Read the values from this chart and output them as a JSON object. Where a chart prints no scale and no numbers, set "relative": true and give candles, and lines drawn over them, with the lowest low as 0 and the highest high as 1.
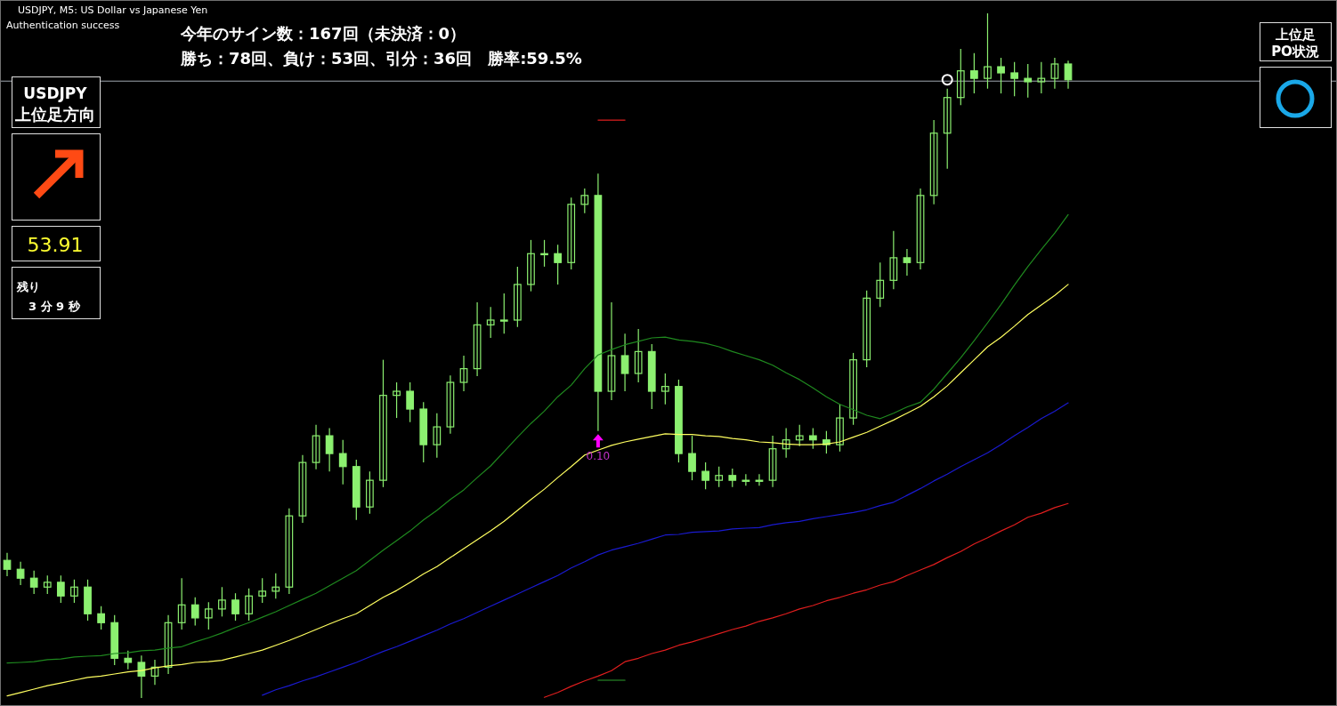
{
  "chart_data": [
    {
      "type": "candlestick",
      "title": "USDJPY, M5: US Dollar vs Japanese Yen",
      "subtitle": "Authentication success",
      "annotations": [
        "今年のサイン数：167回（未決済：0）",
        "勝ち：78回、負け：53回、引分：36回　勝率:59.5%",
        "0.10"
      ],
      "relative": true,
      "color": "#8cf070",
      "categories": [
        null,
        null,
        null,
        null,
        null,
        null,
        null,
        null,
        null,
        null,
        null,
        null,
        null,
        null,
        null,
        null,
        null,
        null,
        null,
        null,
        null,
        null,
        null,
        null,
        null,
        null,
        null,
        null,
        null,
        null,
        null,
        null,
        null,
        null,
        null,
        null,
        null,
        null,
        null,
        null,
        null,
        null,
        null,
        null,
        null,
        null,
        null,
        null,
        null,
        null,
        null,
        null,
        null,
        null,
        null,
        null,
        null,
        null,
        null,
        null,
        null,
        null,
        null,
        null,
        null,
        null,
        null,
        null,
        null,
        null,
        null,
        null,
        null,
        null,
        null,
        null,
        null,
        null,
        null,
        null
      ],
      "ohlc": [
        [
          0.201,
          0.212,
          0.178,
          0.188
        ],
        [
          0.188,
          0.199,
          0.165,
          0.175
        ],
        [
          0.175,
          0.186,
          0.152,
          0.162
        ],
        [
          0.162,
          0.179,
          0.152,
          0.169
        ],
        [
          0.169,
          0.179,
          0.139,
          0.149
        ],
        [
          0.149,
          0.173,
          0.139,
          0.162
        ],
        [
          0.162,
          0.173,
          0.113,
          0.123
        ],
        [
          0.123,
          0.134,
          0.1,
          0.11
        ],
        [
          0.11,
          0.121,
          0.048,
          0.058
        ],
        [
          0.058,
          0.069,
          0.042,
          0.052
        ],
        [
          0.052,
          0.062,
          0,
          0.032
        ],
        [
          0.032,
          0.056,
          0.019,
          0.045
        ],
        [
          0.045,
          0.121,
          0.035,
          0.11
        ],
        [
          0.11,
          0.175,
          0.1,
          0.136
        ],
        [
          0.136,
          0.147,
          0.106,
          0.117
        ],
        [
          0.117,
          0.14,
          0.1,
          0.13
        ],
        [
          0.13,
          0.162,
          0.119,
          0.143
        ],
        [
          0.143,
          0.153,
          0.113,
          0.123
        ],
        [
          0.123,
          0.16,
          0.113,
          0.149
        ],
        [
          0.149,
          0.175,
          0.139,
          0.156
        ],
        [
          0.156,
          0.182,
          0.145,
          0.162
        ],
        [
          0.162,
          0.277,
          0.152,
          0.266
        ],
        [
          0.266,
          0.355,
          0.256,
          0.344
        ],
        [
          0.344,
          0.399,
          0.334,
          0.383
        ],
        [
          0.383,
          0.394,
          0.331,
          0.357
        ],
        [
          0.357,
          0.377,
          0.312,
          0.338
        ],
        [
          0.338,
          0.348,
          0.26,
          0.279
        ],
        [
          0.279,
          0.331,
          0.269,
          0.318
        ],
        [
          0.318,
          0.494,
          0.308,
          0.442
        ],
        [
          0.442,
          0.461,
          0.409,
          0.448
        ],
        [
          0.448,
          0.461,
          0.403,
          0.422
        ],
        [
          0.422,
          0.432,
          0.344,
          0.37
        ],
        [
          0.37,
          0.416,
          0.351,
          0.396
        ],
        [
          0.396,
          0.471,
          0.386,
          0.461
        ],
        [
          0.461,
          0.5,
          0.448,
          0.481
        ],
        [
          0.481,
          0.578,
          0.47,
          0.545
        ],
        [
          0.545,
          0.571,
          0.526,
          0.552
        ],
        [
          0.552,
          0.591,
          0.532,
          0.552
        ],
        [
          0.552,
          0.63,
          0.542,
          0.604
        ],
        [
          0.604,
          0.669,
          0.594,
          0.649
        ],
        [
          0.649,
          0.669,
          0.63,
          0.649
        ],
        [
          0.649,
          0.662,
          0.604,
          0.636
        ],
        [
          0.636,
          0.731,
          0.626,
          0.721
        ],
        [
          0.721,
          0.744,
          0.708,
          0.734
        ],
        [
          0.734,
          0.766,
          0.39,
          0.448
        ],
        [
          0.448,
          0.578,
          0.435,
          0.5
        ],
        [
          0.5,
          0.532,
          0.448,
          0.474
        ],
        [
          0.474,
          0.539,
          0.461,
          0.506
        ],
        [
          0.506,
          0.517,
          0.422,
          0.448
        ],
        [
          0.448,
          0.474,
          0.429,
          0.455
        ],
        [
          0.455,
          0.465,
          0.344,
          0.357
        ],
        [
          0.357,
          0.383,
          0.318,
          0.331
        ],
        [
          0.331,
          0.344,
          0.305,
          0.318
        ],
        [
          0.318,
          0.338,
          0.308,
          0.325
        ],
        [
          0.325,
          0.335,
          0.308,
          0.318
        ],
        [
          0.318,
          0.327,
          0.31,
          0.318
        ],
        [
          0.318,
          0.327,
          0.31,
          0.318
        ],
        [
          0.318,
          0.383,
          0.308,
          0.364
        ],
        [
          0.364,
          0.394,
          0.351,
          0.377
        ],
        [
          0.377,
          0.399,
          0.368,
          0.383
        ],
        [
          0.383,
          0.394,
          0.364,
          0.377
        ],
        [
          0.377,
          0.39,
          0.357,
          0.37
        ],
        [
          0.37,
          0.429,
          0.36,
          0.409
        ],
        [
          0.409,
          0.504,
          0.399,
          0.494
        ],
        [
          0.494,
          0.595,
          0.483,
          0.584
        ],
        [
          0.584,
          0.636,
          0.571,
          0.61
        ],
        [
          0.61,
          0.682,
          0.597,
          0.643
        ],
        [
          0.643,
          0.656,
          0.617,
          0.636
        ],
        [
          0.636,
          0.744,
          0.626,
          0.734
        ],
        [
          0.734,
          0.844,
          0.721,
          0.825
        ],
        [
          0.825,
          0.89,
          0.773,
          0.877
        ],
        [
          0.877,
          0.948,
          0.866,
          0.916
        ],
        [
          0.916,
          0.942,
          0.883,
          0.905
        ],
        [
          0.905,
          1,
          0.89,
          0.922
        ],
        [
          0.922,
          0.935,
          0.883,
          0.913
        ],
        [
          0.913,
          0.929,
          0.879,
          0.905
        ],
        [
          0.905,
          0.926,
          0.877,
          0.9
        ],
        [
          0.9,
          0.929,
          0.883,
          0.905
        ],
        [
          0.905,
          0.935,
          0.89,
          0.926
        ],
        [
          0.926,
          0.931,
          0.89,
          0.903
        ]
      ],
      "ref_lines": [
        {
          "axis": "y",
          "value": 0.901,
          "color": "#a0a8b0"
        }
      ],
      "series": [
        {
          "type": "line",
          "color": "#1f8a1f",
          "values": [
            0.051,
            0.052,
            0.053,
            0.056,
            0.057,
            0.06,
            0.061,
            0.062,
            0.065,
            0.066,
            0.069,
            0.07,
            0.073,
            0.075,
            0.082,
            0.088,
            0.095,
            0.103,
            0.11,
            0.118,
            0.126,
            0.135,
            0.144,
            0.153,
            0.164,
            0.175,
            0.186,
            0.201,
            0.216,
            0.23,
            0.244,
            0.26,
            0.274,
            0.29,
            0.304,
            0.322,
            0.339,
            0.36,
            0.381,
            0.401,
            0.419,
            0.44,
            0.457,
            0.481,
            0.501,
            0.509,
            0.516,
            0.521,
            0.526,
            0.527,
            0.523,
            0.521,
            0.518,
            0.513,
            0.506,
            0.5,
            0.494,
            0.486,
            0.475,
            0.465,
            0.453,
            0.44,
            0.429,
            0.421,
            0.413,
            0.408,
            0.416,
            0.425,
            0.432,
            0.451,
            0.474,
            0.497,
            0.522,
            0.548,
            0.575,
            0.603,
            0.63,
            0.655,
            0.679,
            0.706
          ]
        },
        {
          "type": "line",
          "color": "#ffff60",
          "values": [
            0.003,
            0.008,
            0.013,
            0.018,
            0.022,
            0.026,
            0.03,
            0.032,
            0.035,
            0.038,
            0.04,
            0.044,
            0.047,
            0.049,
            0.052,
            0.053,
            0.055,
            0.06,
            0.065,
            0.07,
            0.077,
            0.084,
            0.092,
            0.1,
            0.108,
            0.116,
            0.123,
            0.135,
            0.147,
            0.157,
            0.169,
            0.181,
            0.192,
            0.205,
            0.218,
            0.231,
            0.244,
            0.258,
            0.274,
            0.29,
            0.305,
            0.322,
            0.338,
            0.355,
            0.362,
            0.369,
            0.374,
            0.378,
            0.382,
            0.386,
            0.385,
            0.385,
            0.383,
            0.382,
            0.379,
            0.377,
            0.374,
            0.373,
            0.371,
            0.37,
            0.37,
            0.371,
            0.374,
            0.381,
            0.388,
            0.397,
            0.406,
            0.416,
            0.426,
            0.44,
            0.456,
            0.475,
            0.494,
            0.513,
            0.527,
            0.543,
            0.56,
            0.574,
            0.588,
            0.604
          ]
        },
        {
          "type": "line",
          "color": "#1a1ad0",
          "values": [
            null,
            null,
            null,
            null,
            null,
            null,
            null,
            null,
            null,
            null,
            null,
            null,
            null,
            null,
            null,
            null,
            null,
            null,
            null,
            0.004,
            0.012,
            0.018,
            0.025,
            0.031,
            0.038,
            0.045,
            0.052,
            0.06,
            0.068,
            0.075,
            0.083,
            0.091,
            0.099,
            0.108,
            0.116,
            0.125,
            0.134,
            0.143,
            0.152,
            0.161,
            0.17,
            0.179,
            0.19,
            0.199,
            0.209,
            0.216,
            0.221,
            0.226,
            0.232,
            0.238,
            0.239,
            0.242,
            0.243,
            0.244,
            0.247,
            0.248,
            0.249,
            0.253,
            0.256,
            0.258,
            0.262,
            0.265,
            0.268,
            0.271,
            0.275,
            0.281,
            0.286,
            0.296,
            0.306,
            0.317,
            0.327,
            0.338,
            0.348,
            0.358,
            0.37,
            0.383,
            0.395,
            0.408,
            0.419,
            0.431
          ]
        },
        {
          "type": "line",
          "color": "#e01e1e",
          "values": [
            null,
            null,
            null,
            null,
            null,
            null,
            null,
            null,
            null,
            null,
            null,
            null,
            null,
            null,
            null,
            null,
            null,
            null,
            null,
            null,
            null,
            null,
            null,
            null,
            null,
            null,
            null,
            null,
            null,
            null,
            null,
            null,
            null,
            null,
            null,
            null,
            null,
            null,
            null,
            null,
            0.001,
            0.008,
            0.017,
            0.025,
            0.032,
            0.04,
            0.053,
            0.058,
            0.065,
            0.07,
            0.077,
            0.082,
            0.088,
            0.094,
            0.1,
            0.105,
            0.112,
            0.117,
            0.123,
            0.13,
            0.135,
            0.142,
            0.147,
            0.153,
            0.158,
            0.165,
            0.17,
            0.179,
            0.187,
            0.195,
            0.205,
            0.214,
            0.225,
            0.234,
            0.244,
            0.253,
            0.264,
            0.27,
            0.278,
            0.284
          ]
        },
        {
          "type": "line",
          "color": "#e01e1e",
          "values": [
            null,
            null,
            null,
            null,
            null,
            null,
            null,
            null,
            null,
            null,
            null,
            null,
            null,
            null,
            null,
            null,
            null,
            null,
            null,
            null,
            null,
            null,
            null,
            null,
            null,
            null,
            null,
            null,
            null,
            null,
            null,
            null,
            null,
            null,
            null,
            null,
            null,
            null,
            null,
            null,
            null,
            null,
            null,
            null,
            0.844,
            0.844,
            0.844,
            null,
            null,
            null,
            null,
            null,
            null,
            null,
            null,
            null,
            null,
            null,
            null,
            null,
            null,
            null,
            null,
            null,
            null,
            null,
            null,
            null,
            null,
            null,
            null,
            null,
            null,
            null,
            null,
            null,
            null,
            null,
            null,
            null
          ]
        },
        {
          "type": "line",
          "color": "#2ea02e",
          "values": [
            null,
            null,
            null,
            null,
            null,
            null,
            null,
            null,
            null,
            null,
            null,
            null,
            null,
            null,
            null,
            null,
            null,
            null,
            null,
            null,
            null,
            null,
            null,
            null,
            null,
            null,
            null,
            null,
            null,
            null,
            null,
            null,
            null,
            null,
            null,
            null,
            null,
            null,
            null,
            null,
            null,
            null,
            null,
            null,
            0.026,
            0.026,
            0.026,
            null,
            null,
            null,
            null,
            null,
            null,
            null,
            null,
            null,
            null,
            null,
            null,
            null,
            null,
            null,
            null,
            null,
            null,
            null,
            null,
            null,
            null,
            null,
            null,
            null,
            null,
            null,
            null,
            null,
            null,
            null,
            null,
            null
          ]
        },
        {
          "type": "scatter",
          "marker": "triangle",
          "color": "#ff00ff",
          "values": [
            null,
            null,
            null,
            null,
            null,
            null,
            null,
            null,
            null,
            null,
            null,
            null,
            null,
            null,
            null,
            null,
            null,
            null,
            null,
            null,
            null,
            null,
            null,
            null,
            null,
            null,
            null,
            null,
            null,
            null,
            null,
            null,
            null,
            null,
            null,
            null,
            null,
            null,
            null,
            null,
            null,
            null,
            null,
            null,
            0.375,
            null,
            null,
            null,
            null,
            null,
            null,
            null,
            null,
            null,
            null,
            null,
            null,
            null,
            null,
            null,
            null,
            null,
            null,
            null,
            null,
            null,
            null,
            null,
            null,
            null,
            null,
            null,
            null,
            null,
            null,
            null,
            null,
            null,
            null,
            null
          ]
        },
        {
          "type": "scatter",
          "marker": "circle",
          "color": "#ffffff",
          "values": [
            null,
            null,
            null,
            null,
            null,
            null,
            null,
            null,
            null,
            null,
            null,
            null,
            null,
            null,
            null,
            null,
            null,
            null,
            null,
            null,
            null,
            null,
            null,
            null,
            null,
            null,
            null,
            null,
            null,
            null,
            null,
            null,
            null,
            null,
            null,
            null,
            null,
            null,
            null,
            null,
            null,
            null,
            null,
            null,
            null,
            null,
            null,
            null,
            null,
            null,
            null,
            null,
            null,
            null,
            null,
            null,
            null,
            null,
            null,
            null,
            null,
            null,
            null,
            null,
            null,
            null,
            null,
            null,
            null,
            null,
            0.903,
            null,
            null,
            null,
            null,
            null,
            null,
            null,
            null,
            null
          ]
        }
      ]
    },
    {
      "type": "other",
      "annotations": [
        "USDJPY",
        "上位足方向",
        "53.91",
        "残り",
        "3 分 9 秒"
      ]
    },
    {
      "type": "other",
      "annotations": [
        "上位足",
        "PO状況"
      ]
    }
  ]
}
